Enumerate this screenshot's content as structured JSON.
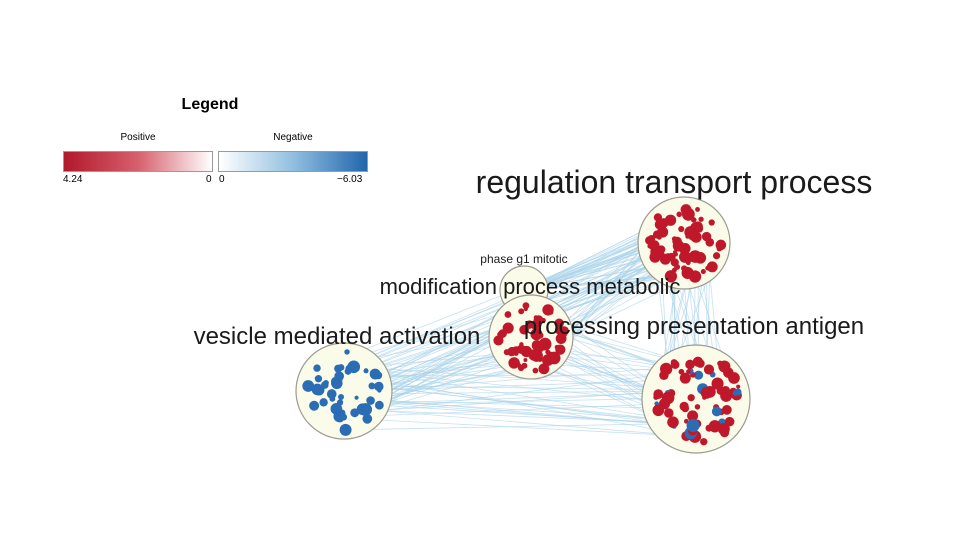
{
  "legend": {
    "title": "Legend",
    "positive": {
      "label": "Positive",
      "max": "4.24",
      "min": "0",
      "color_high": "#b2182b",
      "color_low": "#ffffff"
    },
    "negative": {
      "label": "Negative",
      "min": "0",
      "max": "−6.03",
      "color_low": "#ffffff",
      "color_high": "#2166ac"
    }
  },
  "clusters": [
    {
      "id": "regulation",
      "label": "regulation transport process",
      "nodes": "positive"
    },
    {
      "id": "phase",
      "label": "phase g1 mitotic",
      "nodes": "positive"
    },
    {
      "id": "modification",
      "label": "modification process metabolic",
      "nodes": "positive"
    },
    {
      "id": "processing",
      "label": "processing presentation antigen",
      "nodes": "mixed"
    },
    {
      "id": "vesicle",
      "label": "vesicle mediated activation",
      "nodes": "negative"
    }
  ],
  "colors": {
    "positive_node": "#c0182b",
    "negative_node": "#2a6db5",
    "edge": "#a9d3ea",
    "cluster_fill": "#fbfbea",
    "cluster_stroke": "#9b9b8e"
  }
}
